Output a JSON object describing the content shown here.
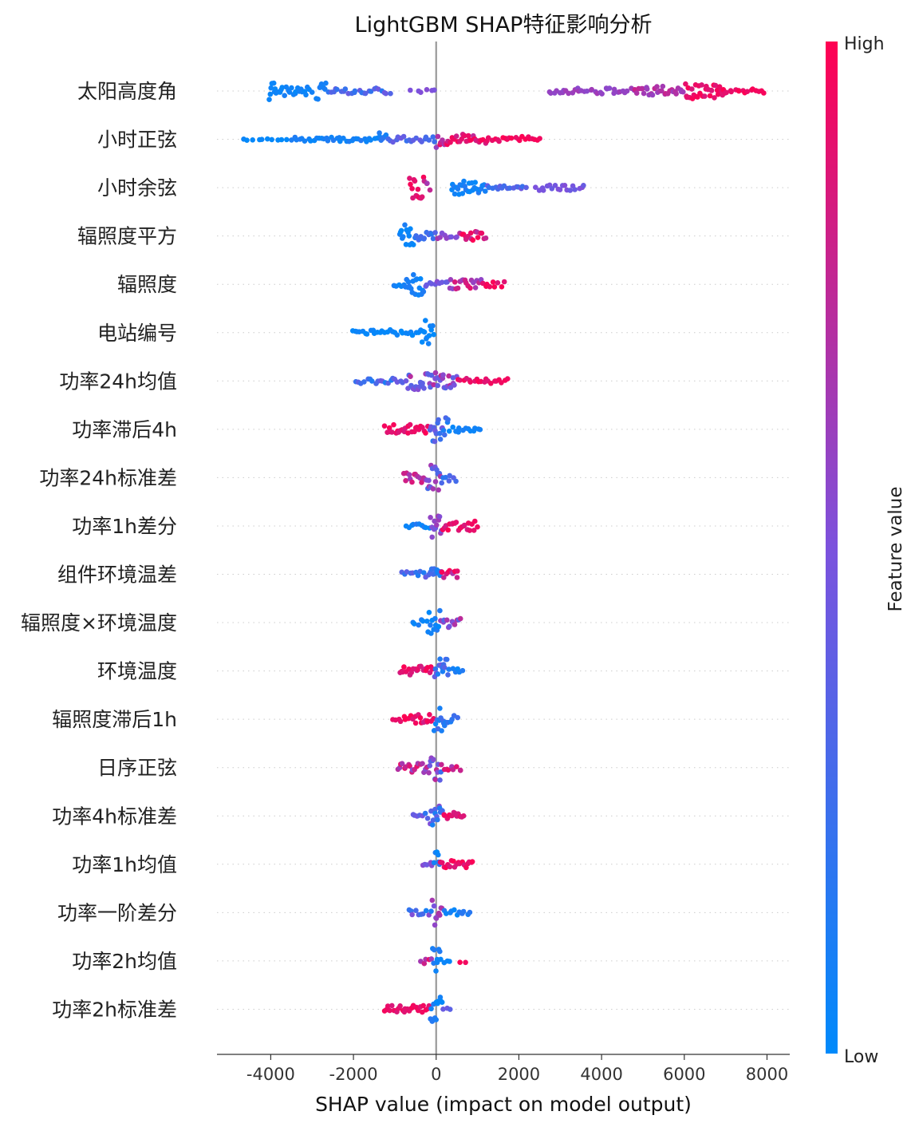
{
  "chart_data": {
    "type": "scatter",
    "subtype": "shap-beeswarm-summary",
    "title": "LightGBM SHAP特征影响分析",
    "xlabel": "SHAP value (impact on model output)",
    "xlim": [
      -5300,
      8550
    ],
    "xticks": [
      -4000,
      -2000,
      0,
      2000,
      4000,
      6000,
      8000
    ],
    "xtick_labels": [
      "-4000",
      "-2000",
      "0",
      "2000",
      "4000",
      "6000",
      "8000"
    ],
    "zero_line": 0,
    "colorbar": {
      "label": "Feature value",
      "high_label": "High",
      "low_label": "Low",
      "low_color": "#008afb",
      "mid_color": "#7c52dd",
      "high_color": "#ff0052"
    },
    "features": [
      {
        "name": "太阳高度角",
        "segments": [
          {
            "from": -4050,
            "to": -3850,
            "density": 5,
            "spread": 0.55,
            "c0": 0.0,
            "c1": 0.08
          },
          {
            "from": -3850,
            "to": -3000,
            "density": 3,
            "spread": 0.25,
            "c0": 0.02,
            "c1": 0.1
          },
          {
            "from": -2900,
            "to": -2650,
            "density": 4,
            "spread": 0.45,
            "c0": 0.05,
            "c1": 0.12
          },
          {
            "from": -2650,
            "to": -1100,
            "density": 2,
            "spread": 0.15,
            "c0": 0.15,
            "c1": 0.45
          },
          {
            "from": -650,
            "to": 50,
            "density": 1,
            "spread": 0.1,
            "c0": 0.45,
            "c1": 0.55
          },
          {
            "from": 2700,
            "to": 4800,
            "density": 2,
            "spread": 0.15,
            "c0": 0.55,
            "c1": 0.65
          },
          {
            "from": 4800,
            "to": 6000,
            "density": 3,
            "spread": 0.25,
            "c0": 0.6,
            "c1": 0.8
          },
          {
            "from": 6000,
            "to": 7000,
            "density": 4,
            "spread": 0.4,
            "c0": 0.85,
            "c1": 1.0
          },
          {
            "from": 7000,
            "to": 7950,
            "density": 2,
            "spread": 0.12,
            "c0": 0.9,
            "c1": 1.0
          }
        ]
      },
      {
        "name": "小时正弦",
        "segments": [
          {
            "from": -4750,
            "to": -3500,
            "density": 1,
            "spread": 0.05,
            "c0": 0.0,
            "c1": 0.05
          },
          {
            "from": -3500,
            "to": -1400,
            "density": 2,
            "spread": 0.12,
            "c0": 0.02,
            "c1": 0.15
          },
          {
            "from": -1400,
            "to": -1200,
            "density": 4,
            "spread": 0.45,
            "c0": 0.05,
            "c1": 0.2
          },
          {
            "from": -1200,
            "to": 0,
            "density": 2,
            "spread": 0.15,
            "c0": 0.2,
            "c1": 0.45
          },
          {
            "from": 0,
            "to": 200,
            "density": 4,
            "spread": 0.55,
            "c0": 0.6,
            "c1": 0.95
          },
          {
            "from": 200,
            "to": 1200,
            "density": 3,
            "spread": 0.3,
            "c0": 0.75,
            "c1": 1.0
          },
          {
            "from": 1200,
            "to": 2550,
            "density": 2,
            "spread": 0.15,
            "c0": 0.9,
            "c1": 1.0
          }
        ]
      },
      {
        "name": "小时余弦",
        "segments": [
          {
            "from": -650,
            "to": -300,
            "density": 5,
            "spread": 0.55,
            "c0": 0.85,
            "c1": 1.0
          },
          {
            "from": -300,
            "to": -150,
            "density": 3,
            "spread": 0.4,
            "c0": 0.65,
            "c1": 0.9
          },
          {
            "from": 350,
            "to": 1200,
            "density": 4,
            "spread": 0.35,
            "c0": 0.0,
            "c1": 0.15
          },
          {
            "from": 1200,
            "to": 2200,
            "density": 2,
            "spread": 0.12,
            "c0": 0.2,
            "c1": 0.45
          },
          {
            "from": 2400,
            "to": 3600,
            "density": 2,
            "spread": 0.15,
            "c0": 0.4,
            "c1": 0.55
          }
        ]
      },
      {
        "name": "辐照度平方",
        "segments": [
          {
            "from": -900,
            "to": -550,
            "density": 5,
            "spread": 0.6,
            "c0": 0.0,
            "c1": 0.12
          },
          {
            "from": -550,
            "to": 0,
            "density": 3,
            "spread": 0.2,
            "c0": 0.1,
            "c1": 0.35
          },
          {
            "from": 0,
            "to": 600,
            "density": 2,
            "spread": 0.15,
            "c0": 0.4,
            "c1": 0.7
          },
          {
            "from": 600,
            "to": 1200,
            "density": 3,
            "spread": 0.25,
            "c0": 0.7,
            "c1": 1.0
          }
        ]
      },
      {
        "name": "辐照度",
        "segments": [
          {
            "from": -1050,
            "to": -750,
            "density": 2,
            "spread": 0.2,
            "c0": 0.0,
            "c1": 0.12
          },
          {
            "from": -750,
            "to": -300,
            "density": 5,
            "spread": 0.6,
            "c0": 0.0,
            "c1": 0.15
          },
          {
            "from": -300,
            "to": 300,
            "density": 2,
            "spread": 0.15,
            "c0": 0.3,
            "c1": 0.55
          },
          {
            "from": 300,
            "to": 1100,
            "density": 3,
            "spread": 0.25,
            "c0": 0.55,
            "c1": 0.9
          },
          {
            "from": 1100,
            "to": 1650,
            "density": 2,
            "spread": 0.15,
            "c0": 0.85,
            "c1": 1.0
          }
        ]
      },
      {
        "name": "电站编号",
        "segments": [
          {
            "from": -2050,
            "to": -350,
            "density": 2,
            "spread": 0.15,
            "c0": 0.0,
            "c1": 0.08
          },
          {
            "from": -350,
            "to": -50,
            "density": 5,
            "spread": 0.65,
            "c0": 0.0,
            "c1": 0.1
          }
        ]
      },
      {
        "name": "功率24h均值",
        "segments": [
          {
            "from": -1950,
            "to": -700,
            "density": 2,
            "spread": 0.15,
            "c0": 0.05,
            "c1": 0.45
          },
          {
            "from": -700,
            "to": 500,
            "density": 4,
            "spread": 0.45,
            "c0": 0.3,
            "c1": 0.75
          },
          {
            "from": 500,
            "to": 1750,
            "density": 2,
            "spread": 0.15,
            "c0": 0.85,
            "c1": 1.0
          }
        ]
      },
      {
        "name": "功率滞后4h",
        "segments": [
          {
            "from": -1250,
            "to": -150,
            "density": 3,
            "spread": 0.25,
            "c0": 0.85,
            "c1": 1.0
          },
          {
            "from": -150,
            "to": 300,
            "density": 5,
            "spread": 0.65,
            "c0": 0.1,
            "c1": 0.6
          },
          {
            "from": 300,
            "to": 1100,
            "density": 2,
            "spread": 0.15,
            "c0": 0.0,
            "c1": 0.12
          }
        ]
      },
      {
        "name": "功率24h标准差",
        "segments": [
          {
            "from": -800,
            "to": -250,
            "density": 3,
            "spread": 0.25,
            "c0": 0.6,
            "c1": 0.95
          },
          {
            "from": -250,
            "to": 150,
            "density": 5,
            "spread": 0.65,
            "c0": 0.2,
            "c1": 0.7
          },
          {
            "from": 150,
            "to": 500,
            "density": 2,
            "spread": 0.2,
            "c0": 0.1,
            "c1": 0.4
          }
        ]
      },
      {
        "name": "功率1h差分",
        "segments": [
          {
            "from": -750,
            "to": -150,
            "density": 2,
            "spread": 0.12,
            "c0": 0.0,
            "c1": 0.2
          },
          {
            "from": -150,
            "to": 150,
            "density": 5,
            "spread": 0.6,
            "c0": 0.4,
            "c1": 0.65
          },
          {
            "from": 150,
            "to": 1000,
            "density": 3,
            "spread": 0.25,
            "c0": 0.8,
            "c1": 1.0
          }
        ]
      },
      {
        "name": "组件环境温差",
        "segments": [
          {
            "from": -850,
            "to": -150,
            "density": 2,
            "spread": 0.15,
            "c0": 0.05,
            "c1": 0.45
          },
          {
            "from": -150,
            "to": 100,
            "density": 5,
            "spread": 0.65,
            "c0": 0.05,
            "c1": 0.3
          },
          {
            "from": 100,
            "to": 550,
            "density": 3,
            "spread": 0.25,
            "c0": 0.65,
            "c1": 1.0
          }
        ]
      },
      {
        "name": "辐照度×环境温度",
        "segments": [
          {
            "from": -600,
            "to": -200,
            "density": 2,
            "spread": 0.2,
            "c0": 0.0,
            "c1": 0.15
          },
          {
            "from": -200,
            "to": 100,
            "density": 5,
            "spread": 0.65,
            "c0": 0.0,
            "c1": 0.15
          },
          {
            "from": 100,
            "to": 600,
            "density": 3,
            "spread": 0.25,
            "c0": 0.3,
            "c1": 0.8
          }
        ]
      },
      {
        "name": "环境温度",
        "segments": [
          {
            "from": -900,
            "to": -50,
            "density": 3,
            "spread": 0.25,
            "c0": 0.8,
            "c1": 1.0
          },
          {
            "from": -50,
            "to": 300,
            "density": 5,
            "spread": 0.65,
            "c0": 0.05,
            "c1": 0.5
          },
          {
            "from": 300,
            "to": 650,
            "density": 2,
            "spread": 0.15,
            "c0": 0.0,
            "c1": 0.15
          }
        ]
      },
      {
        "name": "辐照度滞后1h",
        "segments": [
          {
            "from": -1050,
            "to": -700,
            "density": 2,
            "spread": 0.15,
            "c0": 0.9,
            "c1": 1.0
          },
          {
            "from": -700,
            "to": -50,
            "density": 3,
            "spread": 0.25,
            "c0": 0.8,
            "c1": 1.0
          },
          {
            "from": -50,
            "to": 250,
            "density": 5,
            "spread": 0.65,
            "c0": 0.0,
            "c1": 0.3
          },
          {
            "from": 250,
            "to": 550,
            "density": 2,
            "spread": 0.2,
            "c0": 0.1,
            "c1": 0.4
          }
        ]
      },
      {
        "name": "日序正弦",
        "segments": [
          {
            "from": -950,
            "to": -200,
            "density": 3,
            "spread": 0.25,
            "c0": 0.5,
            "c1": 0.95
          },
          {
            "from": -200,
            "to": 150,
            "density": 5,
            "spread": 0.65,
            "c0": 0.1,
            "c1": 0.85
          },
          {
            "from": 150,
            "to": 650,
            "density": 2,
            "spread": 0.15,
            "c0": 0.6,
            "c1": 1.0
          }
        ]
      },
      {
        "name": "功率4h标准差",
        "segments": [
          {
            "from": -600,
            "to": -150,
            "density": 2,
            "spread": 0.15,
            "c0": 0.15,
            "c1": 0.6
          },
          {
            "from": -150,
            "to": 150,
            "density": 5,
            "spread": 0.6,
            "c0": 0.05,
            "c1": 0.55
          },
          {
            "from": 150,
            "to": 700,
            "density": 3,
            "spread": 0.2,
            "c0": 0.8,
            "c1": 1.0
          }
        ]
      },
      {
        "name": "功率1h均值",
        "segments": [
          {
            "from": -350,
            "to": -50,
            "density": 2,
            "spread": 0.15,
            "c0": 0.3,
            "c1": 0.6
          },
          {
            "from": -50,
            "to": 100,
            "density": 5,
            "spread": 0.65,
            "c0": 0.0,
            "c1": 0.2
          },
          {
            "from": 100,
            "to": 900,
            "density": 3,
            "spread": 0.2,
            "c0": 0.85,
            "c1": 1.0
          }
        ]
      },
      {
        "name": "功率一阶差分",
        "segments": [
          {
            "from": -700,
            "to": -100,
            "density": 2,
            "spread": 0.15,
            "c0": 0.05,
            "c1": 0.6
          },
          {
            "from": -100,
            "to": 150,
            "density": 5,
            "spread": 0.65,
            "c0": 0.45,
            "c1": 0.75
          },
          {
            "from": 150,
            "to": 850,
            "density": 2,
            "spread": 0.15,
            "c0": 0.0,
            "c1": 0.2
          }
        ]
      },
      {
        "name": "功率2h均值",
        "segments": [
          {
            "from": -400,
            "to": -100,
            "density": 2,
            "spread": 0.2,
            "c0": 0.6,
            "c1": 1.0
          },
          {
            "from": -100,
            "to": 100,
            "density": 5,
            "spread": 0.65,
            "c0": 0.0,
            "c1": 0.15
          },
          {
            "from": 100,
            "to": 350,
            "density": 2,
            "spread": 0.12,
            "c0": 0.0,
            "c1": 0.15
          },
          {
            "from": 550,
            "to": 800,
            "density": 1,
            "spread": 0.1,
            "c0": 0.9,
            "c1": 1.0
          }
        ]
      },
      {
        "name": "功率2h标准差",
        "segments": [
          {
            "from": -1250,
            "to": -150,
            "density": 3,
            "spread": 0.2,
            "c0": 0.85,
            "c1": 1.0
          },
          {
            "from": -150,
            "to": 150,
            "density": 5,
            "spread": 0.65,
            "c0": 0.0,
            "c1": 0.2
          },
          {
            "from": 150,
            "to": 350,
            "density": 2,
            "spread": 0.15,
            "c0": 0.35,
            "c1": 0.6
          }
        ]
      }
    ]
  }
}
